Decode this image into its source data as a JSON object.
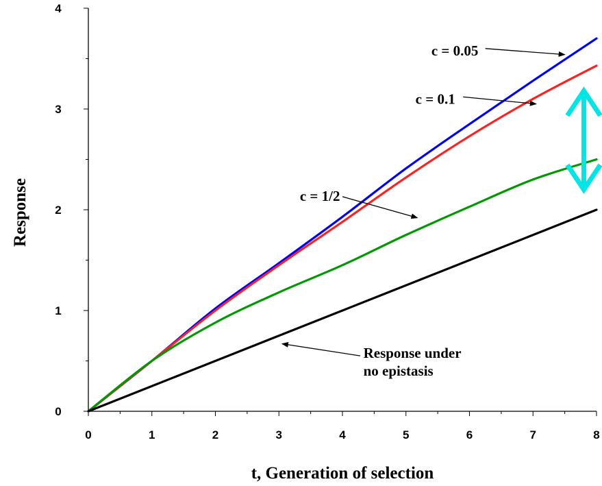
{
  "chart_data": {
    "type": "line",
    "xlabel": "t, Generation of selection",
    "ylabel": "Response",
    "xlim": [
      0,
      8
    ],
    "ylim": [
      0,
      4
    ],
    "xticks": [
      "0",
      "1",
      "2",
      "3",
      "4",
      "5",
      "6",
      "7",
      "8"
    ],
    "yticks": [
      "0",
      "1",
      "2",
      "3",
      "4"
    ],
    "grid": false,
    "x": [
      0,
      1,
      2,
      3,
      4,
      5,
      6,
      7,
      8
    ],
    "series": [
      {
        "id": "c005",
        "color": "#0000ff",
        "values": [
          0,
          0.5,
          1.02,
          1.47,
          1.93,
          2.41,
          2.85,
          3.28,
          3.7
        ]
      },
      {
        "id": "c01",
        "color": "#ff2020",
        "values": [
          0,
          0.5,
          1.0,
          1.45,
          1.88,
          2.32,
          2.73,
          3.1,
          3.43
        ]
      },
      {
        "id": "c05",
        "color": "#009900",
        "values": [
          0,
          0.5,
          0.88,
          1.18,
          1.45,
          1.75,
          2.03,
          2.3,
          2.5
        ]
      },
      {
        "id": "no-epistasis",
        "color": "#000000",
        "values": [
          0,
          0.25,
          0.5,
          0.75,
          1.0,
          1.25,
          1.5,
          1.75,
          2.0
        ]
      }
    ],
    "annotations": [
      {
        "id": "c005",
        "text": "c = 0.05",
        "text_x": 5.4,
        "text_y": 3.53,
        "arrow_from": [
          6.25,
          3.6
        ],
        "arrow_to": [
          7.5,
          3.54
        ]
      },
      {
        "id": "c01",
        "text": "c = 0.1",
        "text_x": 5.15,
        "text_y": 3.05,
        "arrow_from": [
          5.9,
          3.12
        ],
        "arrow_to": [
          7.05,
          3.05
        ]
      },
      {
        "id": "c05",
        "text": "c = 1/2",
        "text_x": 3.33,
        "text_y": 2.09,
        "arrow_from": [
          4.0,
          2.13
        ],
        "arrow_to": [
          5.18,
          1.92
        ]
      },
      {
        "id": "no-epistasis",
        "text": [
          "Response under",
          "no epistasis"
        ],
        "text_x": 4.33,
        "text_y": 0.53,
        "arrow_from": [
          4.28,
          0.55
        ],
        "arrow_to": [
          3.05,
          0.67
        ]
      }
    ],
    "bracket": {
      "color": "#00e5e5",
      "x": 7.8,
      "y_top": 3.18,
      "y_bottom": 2.2
    }
  }
}
